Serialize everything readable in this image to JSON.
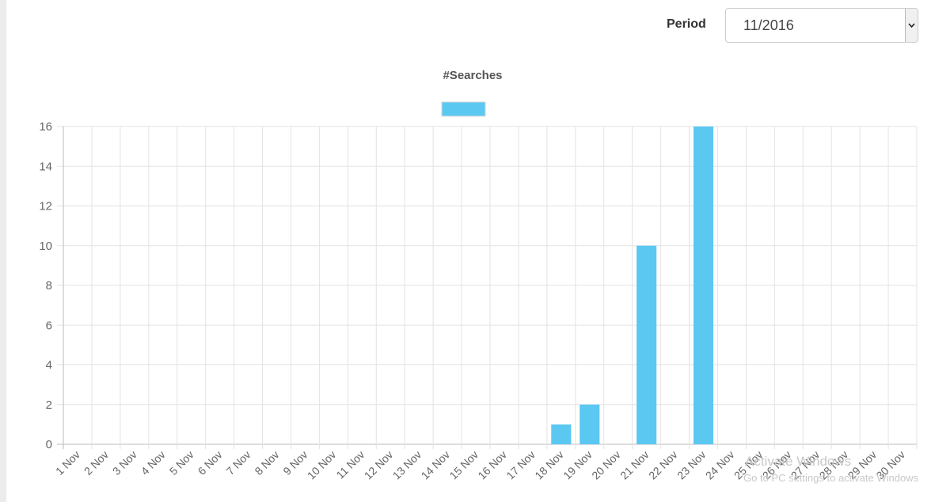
{
  "period": {
    "label": "Period",
    "value": "11/2016"
  },
  "overlay": {
    "line1": "Activate Windows",
    "line2": "Go to PC settings to activate Windows"
  },
  "chart_data": {
    "type": "bar",
    "title": "#Searches",
    "xlabel": "",
    "ylabel": "",
    "ylim": [
      0,
      16
    ],
    "yticks": [
      0,
      2,
      4,
      6,
      8,
      10,
      12,
      14,
      16
    ],
    "grid": true,
    "legend": "top-center",
    "bar_color": "#5bc8f2",
    "categories": [
      "1 Nov",
      "2 Nov",
      "3 Nov",
      "4 Nov",
      "5 Nov",
      "6 Nov",
      "7 Nov",
      "8 Nov",
      "9 Nov",
      "10 Nov",
      "11 Nov",
      "12 Nov",
      "13 Nov",
      "14 Nov",
      "15 Nov",
      "16 Nov",
      "17 Nov",
      "18 Nov",
      "19 Nov",
      "20 Nov",
      "21 Nov",
      "22 Nov",
      "23 Nov",
      "24 Nov",
      "25 Nov",
      "26 Nov",
      "27 Nov",
      "28 Nov",
      "29 Nov",
      "30 Nov"
    ],
    "values": [
      0,
      0,
      0,
      0,
      0,
      0,
      0,
      0,
      0,
      0,
      0,
      0,
      0,
      0,
      0,
      0,
      0,
      1,
      2,
      0,
      10,
      0,
      16,
      0,
      0,
      0,
      0,
      0,
      0,
      0
    ]
  }
}
